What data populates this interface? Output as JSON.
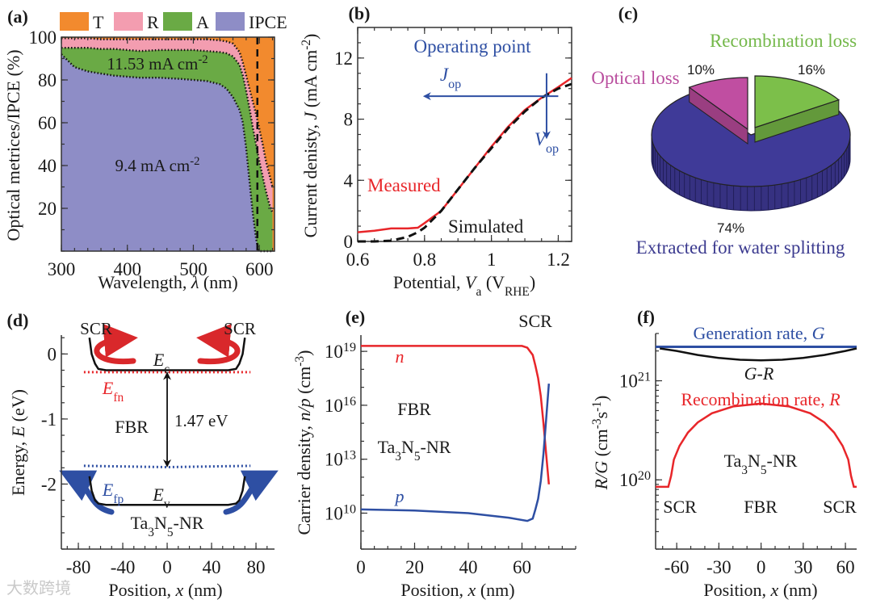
{
  "figure": {
    "watermark": "大数跨境"
  },
  "chart_data": [
    {
      "title": "(a)",
      "type": "area",
      "xlabel": [
        {
          "t": "Wavelength, "
        },
        {
          "t": "λ",
          "i": true
        },
        {
          "t": " (nm)"
        }
      ],
      "ylabel": [
        {
          "t": "Optical metrices/IPCE (%)"
        }
      ],
      "xlim": [
        300,
        623
      ],
      "ylim": [
        0,
        100
      ],
      "x_ticks": [
        300,
        400,
        500,
        600
      ],
      "x_tick_labels": [
        "300",
        "400",
        "500",
        "600"
      ],
      "x_minor": 20,
      "y_ticks": [
        20,
        40,
        60,
        80,
        100
      ],
      "y_tick_labels": [
        "20",
        "40",
        "60",
        "80",
        "100"
      ],
      "y_minor": 10,
      "legend": [
        {
          "label": "T",
          "color": "#f28a2e"
        },
        {
          "label": "R",
          "color": "#f39db0"
        },
        {
          "label": "A",
          "color": "#6aaa45"
        },
        {
          "label": "IPCE",
          "color": "#8e8dc6"
        }
      ],
      "legend_placement": "top",
      "x": [
        300,
        310,
        320,
        340,
        360,
        380,
        400,
        420,
        450,
        480,
        500,
        520,
        540,
        550,
        560,
        570,
        575,
        580,
        585,
        590,
        595,
        598,
        600,
        605,
        610,
        615,
        620
      ],
      "series": [
        {
          "name": "IPCE",
          "values": [
            92,
            89,
            86,
            84,
            83,
            82,
            81.5,
            81,
            81,
            80.5,
            80,
            79.5,
            78,
            76,
            72,
            66,
            60,
            48,
            33,
            18,
            6,
            1,
            0,
            0,
            0,
            0,
            0
          ]
        },
        {
          "name": "A",
          "values": [
            95,
            95,
            95,
            95,
            94.5,
            94.5,
            94,
            93.5,
            94,
            94,
            94,
            93.5,
            93,
            92.5,
            91,
            87,
            82,
            75,
            67,
            58,
            50,
            45,
            42,
            35,
            28,
            22,
            18
          ]
        },
        {
          "name": "R",
          "values": [
            99.5,
            99.5,
            99.5,
            99.5,
            99,
            99,
            99,
            99,
            99,
            99,
            99,
            99,
            98.5,
            98,
            97,
            93,
            88,
            82,
            76,
            70,
            64,
            60,
            57,
            50,
            42,
            36,
            30
          ]
        }
      ],
      "vline": 597,
      "annotations": [
        [
          {
            "t": "11.53 mA cm"
          },
          {
            "t": "-2",
            "v": "sup"
          }
        ],
        [
          {
            "t": "9.4 mA cm"
          },
          {
            "t": "-2",
            "v": "sup"
          }
        ]
      ]
    },
    {
      "title": "(b)",
      "type": "line",
      "xlabel": [
        {
          "t": "Potential, "
        },
        {
          "t": "V",
          "i": true
        },
        {
          "t": "a",
          "v": "sub"
        },
        {
          "t": " (V"
        },
        {
          "t": "RHE",
          "v": "sub"
        },
        {
          "t": ")"
        }
      ],
      "ylabel": [
        {
          "t": "Current denisty, "
        },
        {
          "t": "J",
          "i": true
        },
        {
          "t": " (mA cm"
        },
        {
          "t": "-2",
          "v": "sup"
        },
        {
          "t": ")"
        }
      ],
      "xlim": [
        0.6,
        1.24
      ],
      "ylim": [
        0,
        14
      ],
      "x_ticks": [
        0.6,
        0.8,
        1.0,
        1.2
      ],
      "x_tick_labels": [
        "0.6",
        "0.8",
        "1",
        "1.2"
      ],
      "x_minor": 0.05,
      "y_ticks": [
        0,
        4,
        8,
        12
      ],
      "y_tick_labels": [
        "0",
        "4",
        "8",
        "12"
      ],
      "y_minor": 1,
      "x": [
        0.6,
        0.65,
        0.7,
        0.75,
        0.78,
        0.8,
        0.85,
        0.9,
        0.95,
        1.0,
        1.05,
        1.1,
        1.15,
        1.2,
        1.24
      ],
      "series": [
        {
          "name": "Measured",
          "color": "#e8262a",
          "style": "solid",
          "values": [
            0.6,
            0.7,
            0.85,
            0.85,
            0.9,
            1.2,
            2.0,
            3.4,
            4.8,
            6.2,
            7.5,
            8.6,
            9.4,
            10.1,
            10.7
          ]
        },
        {
          "name": "Simulated",
          "color": "#111111",
          "style": "dashed",
          "values": [
            0,
            0,
            0.05,
            0.3,
            0.6,
            0.9,
            2.0,
            3.4,
            4.8,
            6.1,
            7.4,
            8.5,
            9.4,
            10.0,
            10.3
          ]
        }
      ],
      "operating_point": {
        "V": 1.165,
        "J": 9.5
      },
      "op_color": "#2e4fa3",
      "op_label": "Operating point",
      "j_op": [
        {
          "t": "J",
          "i": true
        },
        {
          "t": "op",
          "v": "sub"
        }
      ],
      "v_op": [
        {
          "t": "V",
          "i": true
        },
        {
          "t": "op",
          "v": "sub"
        }
      ]
    },
    {
      "title": "(c)",
      "type": "pie",
      "slices": [
        {
          "label": "Extracted for water splitting",
          "value": 74,
          "pct": "74%",
          "color": "#3f3a98",
          "label_color": "#3b3a8f"
        },
        {
          "label": "Recombination loss",
          "value": 16,
          "pct": "16%",
          "color": "#7cbf4a",
          "label_color": "#74b84a"
        },
        {
          "label": "Optical loss",
          "value": 10,
          "pct": "10%",
          "color": "#c04ea1",
          "label_color": "#b94e9e"
        }
      ]
    },
    {
      "title": "(d)",
      "type": "line",
      "xlabel": [
        {
          "t": "Position, "
        },
        {
          "t": "x",
          "i": true
        },
        {
          "t": " (nm)"
        }
      ],
      "ylabel": [
        {
          "t": "Energy, "
        },
        {
          "t": "E",
          "i": true
        },
        {
          "t": " (eV)"
        }
      ],
      "xlim": [
        -95.3,
        96.7
      ],
      "ylim": [
        -3.0,
        0.29
      ],
      "x_ticks": [
        -80,
        -40,
        0,
        40,
        80
      ],
      "x_tick_labels": [
        "-80",
        "-40",
        "0",
        "40",
        "80"
      ],
      "x_minor": 10,
      "y_ticks": [
        0,
        -1,
        -2
      ],
      "y_tick_labels": [
        "0",
        "-1",
        "-2"
      ],
      "y_minor": 0.25,
      "series": [
        {
          "name": "Ec",
          "color": "#111111",
          "style": "solid",
          "x": [
            -70,
            -68,
            -65,
            -62,
            -55,
            0,
            55,
            62,
            65,
            68,
            70
          ],
          "values": [
            0.25,
            0,
            -0.15,
            -0.23,
            -0.25,
            -0.25,
            -0.25,
            -0.23,
            -0.15,
            0,
            0.25
          ]
        },
        {
          "name": "Efn",
          "color": "#e8262a",
          "style": "dotted",
          "x": [
            -75,
            75
          ],
          "values": [
            -0.28,
            -0.28
          ]
        },
        {
          "name": "Efp",
          "color": "#2e4fa3",
          "style": "dotted",
          "x": [
            -75,
            0,
            75
          ],
          "values": [
            -1.72,
            -1.74,
            -1.72
          ]
        },
        {
          "name": "Ev",
          "color": "#111111",
          "style": "solid",
          "x": [
            -70,
            -68,
            -65,
            -62,
            -55,
            0,
            55,
            62,
            65,
            68,
            70
          ],
          "values": [
            -1.88,
            -2.1,
            -2.25,
            -2.3,
            -2.32,
            -2.32,
            -2.32,
            -2.3,
            -2.25,
            -2.1,
            -1.88
          ]
        }
      ],
      "gap": {
        "x": 0,
        "from": -0.3,
        "to": -1.72,
        "label": "1.47 eV"
      },
      "labels": {
        "scr": "SCR",
        "fbr": "FBR",
        "ec": [
          {
            "t": "E",
            "i": true
          },
          {
            "t": "c",
            "v": "sub"
          }
        ],
        "efn": [
          {
            "t": "E",
            "i": true
          },
          {
            "t": "fn",
            "v": "sub"
          }
        ],
        "efp": [
          {
            "t": "E",
            "i": true
          },
          {
            "t": "fp",
            "v": "sub"
          }
        ],
        "ev": [
          {
            "t": "E",
            "i": true
          },
          {
            "t": "v",
            "v": "sub"
          }
        ],
        "material": [
          {
            "t": "Ta"
          },
          {
            "t": "3",
            "v": "sub"
          },
          {
            "t": "N"
          },
          {
            "t": "5",
            "v": "sub"
          },
          {
            "t": "-NR"
          }
        ]
      }
    },
    {
      "title": "(e)",
      "type": "line",
      "xlabel": [
        {
          "t": "Position, "
        },
        {
          "t": "x",
          "i": true
        },
        {
          "t": " (nm)"
        }
      ],
      "ylabel": [
        {
          "t": "Carrier density, "
        },
        {
          "t": "n/p",
          "i": true
        },
        {
          "t": " (cm"
        },
        {
          "t": "-3",
          "v": "sup"
        },
        {
          "t": ")"
        }
      ],
      "xlim": [
        0,
        80
      ],
      "ylim": [
        100000000.0,
        8e+19
      ],
      "yscale": "log",
      "x_ticks": [
        0,
        20,
        40,
        60
      ],
      "x_tick_labels": [
        "0",
        "20",
        "40",
        "60"
      ],
      "x_minor": 5,
      "y_ticks": [
        10000000000.0,
        10000000000000.0,
        1e+16,
        1e+19
      ],
      "y_tick_labels": [
        [
          {
            "t": "10"
          },
          {
            "t": "10",
            "v": "sup"
          }
        ],
        [
          {
            "t": "10"
          },
          {
            "t": "13",
            "v": "sup"
          }
        ],
        [
          {
            "t": "10"
          },
          {
            "t": "16",
            "v": "sup"
          }
        ],
        [
          {
            "t": "10"
          },
          {
            "t": "19",
            "v": "sup"
          }
        ]
      ],
      "y_minor": "decade",
      "series": [
        {
          "name": "n",
          "color": "#e8262a",
          "x": [
            0,
            20,
            40,
            60,
            62,
            64,
            65,
            66,
            67,
            68,
            69,
            70
          ],
          "values": [
            2e+19,
            2e+19,
            2e+19,
            2e+19,
            1.6e+19,
            6.3e+18,
            1.6e+18,
            3.2e+17,
            3.2e+16,
            1000000000000000.0,
            20000000000000.0,
            400000000000.0
          ]
        },
        {
          "name": "p",
          "color": "#2e4fa3",
          "x": [
            0,
            20,
            40,
            55,
            62,
            64,
            65,
            66,
            67,
            68,
            69,
            70
          ],
          "values": [
            16000000000.0,
            14000000000.0,
            10000000000.0,
            5600000000.0,
            3700000000.0,
            5000000000.0,
            16000000000.0,
            63000000000.0,
            630000000000.0,
            20000000000000.0,
            1600000000000000.0,
            1.6e+17
          ]
        }
      ],
      "labels": {
        "scr": "SCR",
        "fbr": "FBR",
        "material": [
          {
            "t": "Ta"
          },
          {
            "t": "3",
            "v": "sub"
          },
          {
            "t": "N"
          },
          {
            "t": "5",
            "v": "sub"
          },
          {
            "t": "-NR"
          }
        ]
      }
    },
    {
      "title": "(f)",
      "type": "line",
      "xlabel": [
        {
          "t": "Position, "
        },
        {
          "t": "x",
          "i": true
        },
        {
          "t": " (nm)"
        }
      ],
      "ylabel": [
        {
          "t": "R/G",
          "i": true
        },
        {
          "t": " (cm"
        },
        {
          "t": "-3",
          "v": "sup"
        },
        {
          "t": "s"
        },
        {
          "t": "-1",
          "v": "sup"
        },
        {
          "t": ")"
        }
      ],
      "xlim": [
        -75,
        68
      ],
      "ylim": [
        2e+19,
        3e+21
      ],
      "yscale": "log",
      "x_ticks": [
        -60,
        -30,
        0,
        30,
        60
      ],
      "x_tick_labels": [
        "-60",
        "-30",
        "0",
        "30",
        "60"
      ],
      "x_minor": 10,
      "y_ticks": [
        1e+20,
        1e+21
      ],
      "y_tick_labels": [
        [
          {
            "t": "10"
          },
          {
            "t": "20",
            "v": "sup"
          }
        ],
        [
          {
            "t": "10"
          },
          {
            "t": "21",
            "v": "sup"
          }
        ]
      ],
      "y_minor": "log",
      "series": [
        {
          "name": [
            {
              "t": "Generation rate, "
            },
            {
              "t": "G",
              "i": true
            }
          ],
          "color": "#2e4fa3",
          "x": [
            -75,
            68
          ],
          "values": [
            2.2e+21,
            2.2e+21
          ]
        },
        {
          "name": [
            {
              "t": "G-R",
              "i": true
            }
          ],
          "color": "#111111",
          "x": [
            -72,
            -60,
            -45,
            -30,
            -15,
            0,
            15,
            30,
            45,
            60,
            68
          ],
          "values": [
            2.12e+21,
            2e+21,
            1.82e+21,
            1.7e+21,
            1.63e+21,
            1.61e+21,
            1.63e+21,
            1.7e+21,
            1.82e+21,
            2e+21,
            2.12e+21
          ]
        },
        {
          "name": [
            {
              "t": "Recombination rate, "
            },
            {
              "t": "R",
              "i": true
            }
          ],
          "color": "#e8262a",
          "x": [
            -75,
            -66,
            -64,
            -62,
            -58,
            -52,
            -45,
            -35,
            -20,
            0,
            20,
            35,
            45,
            52,
            58,
            62,
            64,
            66,
            68
          ],
          "values": [
            8.5e+19,
            8.5e+19,
            1.1e+20,
            1.6e+20,
            2.2e+20,
            3e+20,
            3.8e+20,
            4.7e+20,
            5.5e+20,
            5.9e+20,
            5.5e+20,
            4.7e+20,
            3.8e+20,
            3e+20,
            2.2e+20,
            1.6e+20,
            1.1e+20,
            8.5e+19,
            8.5e+19
          ]
        }
      ],
      "labels": {
        "scr_left": "SCR",
        "fbr": "FBR",
        "scr_right": "SCR",
        "material": [
          {
            "t": "Ta"
          },
          {
            "t": "3",
            "v": "sub"
          },
          {
            "t": "N"
          },
          {
            "t": "5",
            "v": "sub"
          },
          {
            "t": "-NR"
          }
        ]
      }
    }
  ]
}
